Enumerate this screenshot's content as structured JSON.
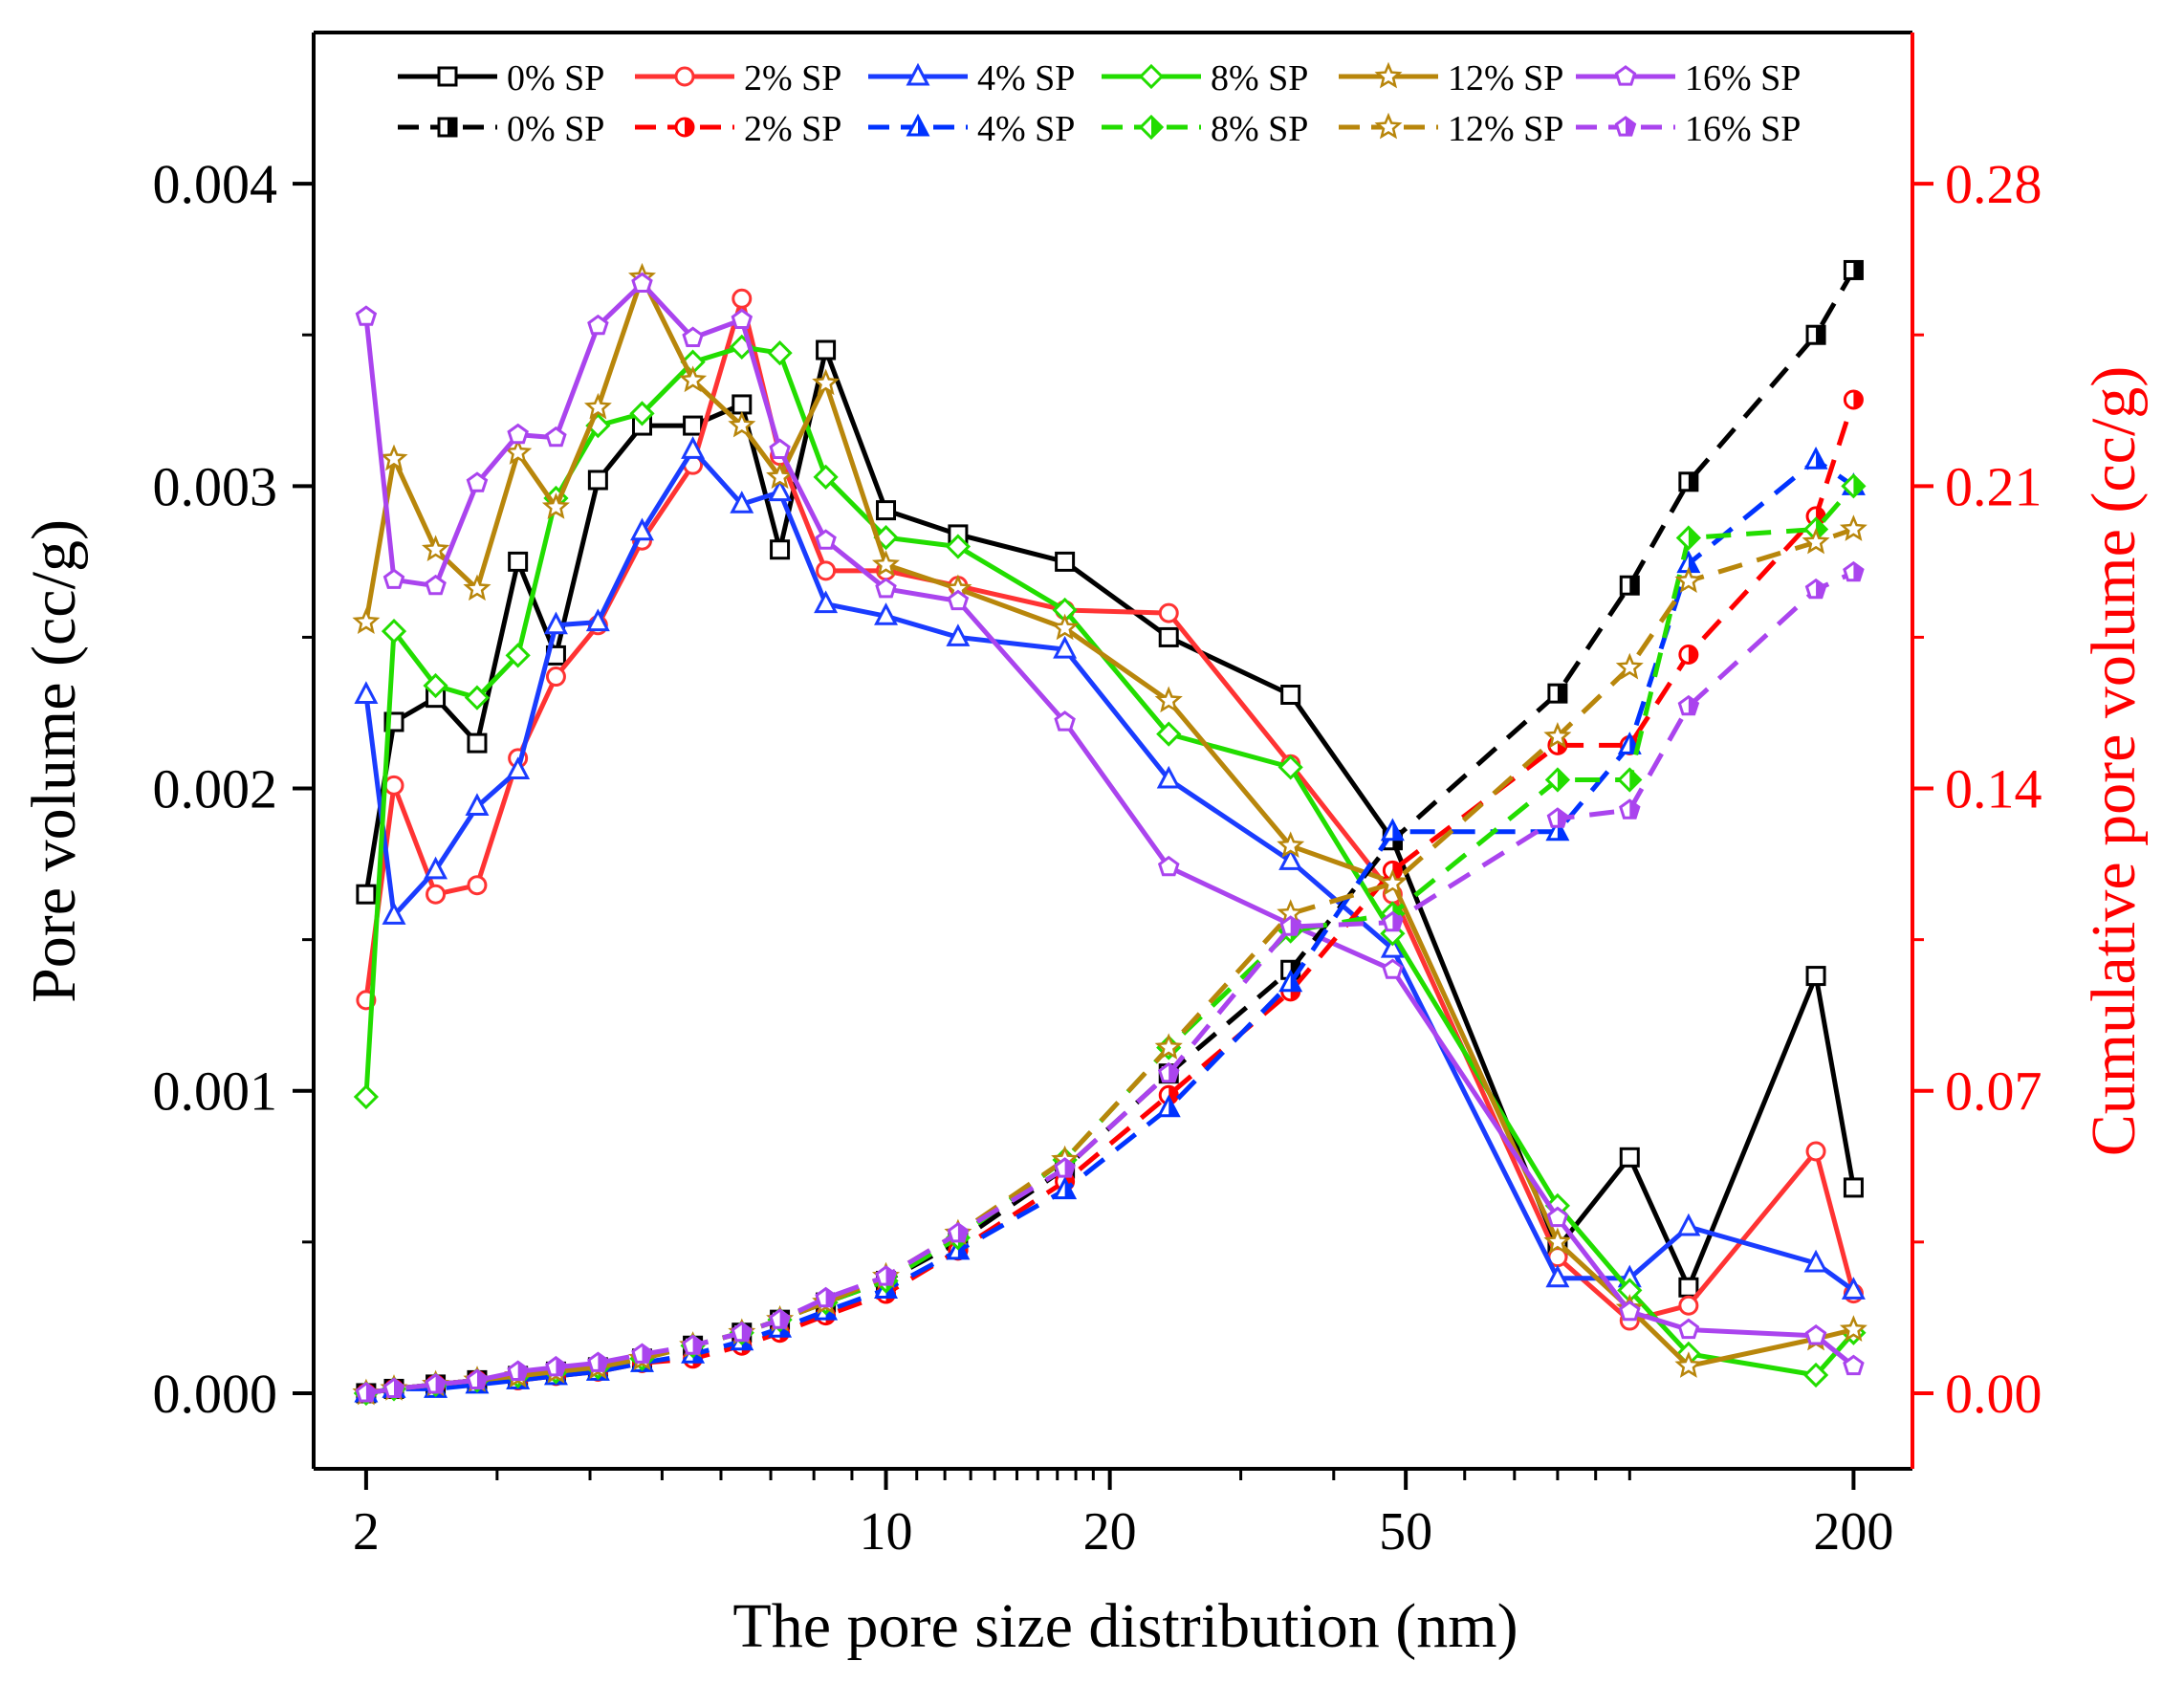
{
  "chart_data": {
    "type": "line",
    "xlabel": "The pore size distribution (nm)",
    "ylabel_left": "Pore volume (cc/g)",
    "ylabel_right": "Cumulative pore volume (cc/g)",
    "x_scale": "log",
    "xlim": [
      1.7,
      240
    ],
    "x_ticks": [
      2,
      10,
      20,
      50,
      200
    ],
    "ylim_left": [
      -0.00025,
      0.0045
    ],
    "y_ticks_left": [
      "0.000",
      "0.001",
      "0.002",
      "0.003",
      "0.004"
    ],
    "ylim_right": [
      -0.0175,
      0.315
    ],
    "y_ticks_right": [
      "0.00",
      "0.07",
      "0.14",
      "0.21",
      "0.28"
    ],
    "right_axis_color": "#ff0000",
    "legend_position": "top",
    "grid": false,
    "x": [
      2.0,
      2.18,
      2.48,
      2.82,
      3.2,
      3.6,
      4.1,
      4.7,
      5.5,
      6.4,
      7.2,
      8.3,
      10.0,
      12.5,
      17.4,
      24.0,
      35.0,
      48.0,
      80.0,
      100.0,
      120.0,
      178.0,
      200.0
    ],
    "series": [
      {
        "name": "0% SP",
        "axis": "left",
        "style": "solid",
        "marker": "square",
        "color": "#000000",
        "values": [
          0.00165,
          0.00222,
          0.0023,
          0.00215,
          0.00275,
          0.00244,
          0.00302,
          0.0032,
          0.0032,
          0.00327,
          0.00279,
          0.00345,
          0.00292,
          0.00284,
          0.00275,
          0.0025,
          0.00231,
          0.00183,
          0.00048,
          0.00078,
          0.00035,
          0.00138,
          0.00068
        ]
      },
      {
        "name": "2% SP",
        "axis": "left",
        "style": "solid",
        "marker": "circle",
        "color": "#ff3333",
        "values": [
          0.0013,
          0.00201,
          0.00165,
          0.00168,
          0.0021,
          0.00237,
          0.00254,
          0.00282,
          0.00307,
          0.00362,
          0.0031,
          0.00272,
          0.00272,
          0.00267,
          0.00259,
          0.00258,
          0.00208,
          0.00165,
          0.00045,
          0.00024,
          0.00029,
          0.0008,
          0.00033
        ]
      },
      {
        "name": "4% SP",
        "axis": "left",
        "style": "solid",
        "marker": "triangle",
        "color": "#1a3cff",
        "values": [
          0.00231,
          0.00158,
          0.00173,
          0.00194,
          0.00206,
          0.00254,
          0.00255,
          0.00285,
          0.00312,
          0.00294,
          0.00298,
          0.00261,
          0.00257,
          0.0025,
          0.00246,
          0.00203,
          0.00176,
          0.00147,
          0.00038,
          0.00038,
          0.00055,
          0.00043,
          0.00034
        ]
      },
      {
        "name": "8% SP",
        "axis": "left",
        "style": "solid",
        "marker": "diamond",
        "color": "#22dd00",
        "values": [
          0.00098,
          0.00252,
          0.00234,
          0.0023,
          0.00244,
          0.00296,
          0.0032,
          0.00324,
          0.00341,
          0.00346,
          0.00344,
          0.00303,
          0.00283,
          0.0028,
          0.00259,
          0.00218,
          0.00207,
          0.00152,
          0.00062,
          0.00034,
          0.00013,
          6e-05,
          0.0002
        ]
      },
      {
        "name": "12% SP",
        "axis": "left",
        "style": "solid",
        "marker": "star",
        "color": "#b8860b",
        "values": [
          0.00255,
          0.00309,
          0.00279,
          0.00266,
          0.00311,
          0.00293,
          0.00326,
          0.00369,
          0.00335,
          0.0032,
          0.00303,
          0.00334,
          0.00274,
          0.00266,
          0.00253,
          0.00229,
          0.00181,
          0.00169,
          0.0005,
          0.00028,
          9e-05,
          0.00018,
          0.00021
        ]
      },
      {
        "name": "16% SP",
        "axis": "left",
        "style": "solid",
        "marker": "pentagon",
        "color": "#aa44ee",
        "values": [
          0.00356,
          0.00269,
          0.00267,
          0.00301,
          0.00317,
          0.00316,
          0.00353,
          0.00367,
          0.00349,
          0.00355,
          0.00312,
          0.00282,
          0.00266,
          0.00262,
          0.00222,
          0.00174,
          0.00155,
          0.0014,
          0.00058,
          0.00027,
          0.00021,
          0.00019,
          9e-05
        ]
      },
      {
        "name": "0% SP",
        "axis": "right",
        "style": "dashed",
        "marker": "square",
        "color": "#000000",
        "values": [
          0.0,
          0.001,
          0.002,
          0.003,
          0.004,
          0.005,
          0.006,
          0.008,
          0.011,
          0.014,
          0.017,
          0.021,
          0.026,
          0.035,
          0.052,
          0.074,
          0.098,
          0.128,
          0.162,
          0.187,
          0.211,
          0.245,
          0.26
        ]
      },
      {
        "name": "2% SP",
        "axis": "right",
        "style": "dashed",
        "marker": "circle",
        "color": "#ff0000",
        "values": [
          0.0,
          0.001,
          0.002,
          0.003,
          0.003,
          0.004,
          0.005,
          0.007,
          0.008,
          0.011,
          0.014,
          0.018,
          0.023,
          0.033,
          0.049,
          0.069,
          0.093,
          0.121,
          0.15,
          0.15,
          0.171,
          0.203,
          0.23
        ]
      },
      {
        "name": "4% SP",
        "axis": "right",
        "style": "dashed",
        "marker": "triangle",
        "color": "#0033ff",
        "values": [
          0.0,
          0.001,
          0.001,
          0.002,
          0.003,
          0.004,
          0.005,
          0.007,
          0.009,
          0.012,
          0.015,
          0.019,
          0.024,
          0.033,
          0.047,
          0.066,
          0.095,
          0.13,
          0.13,
          0.15,
          0.192,
          0.216,
          0.21
        ]
      },
      {
        "name": "8% SP",
        "axis": "right",
        "style": "dashed",
        "marker": "diamond",
        "color": "#22dd00",
        "values": [
          0.0,
          0.001,
          0.002,
          0.003,
          0.004,
          0.005,
          0.006,
          0.008,
          0.011,
          0.014,
          0.017,
          0.021,
          0.026,
          0.036,
          0.054,
          0.08,
          0.107,
          0.111,
          0.142,
          0.142,
          0.198,
          0.2,
          0.21
        ]
      },
      {
        "name": "12% SP",
        "axis": "right",
        "style": "dashed",
        "marker": "star",
        "color": "#b8860b",
        "values": [
          0.0,
          0.001,
          0.002,
          0.003,
          0.004,
          0.005,
          0.006,
          0.008,
          0.011,
          0.014,
          0.017,
          0.021,
          0.027,
          0.037,
          0.054,
          0.08,
          0.111,
          0.118,
          0.152,
          0.168,
          0.188,
          0.197,
          0.2
        ]
      },
      {
        "name": "16% SP",
        "axis": "right",
        "style": "dashed",
        "marker": "pentagon",
        "color": "#aa44ee",
        "values": [
          0.0,
          0.001,
          0.002,
          0.003,
          0.005,
          0.006,
          0.007,
          0.009,
          0.011,
          0.014,
          0.017,
          0.022,
          0.027,
          0.037,
          0.052,
          0.074,
          0.108,
          0.109,
          0.133,
          0.135,
          0.159,
          0.186,
          0.19
        ]
      }
    ]
  }
}
